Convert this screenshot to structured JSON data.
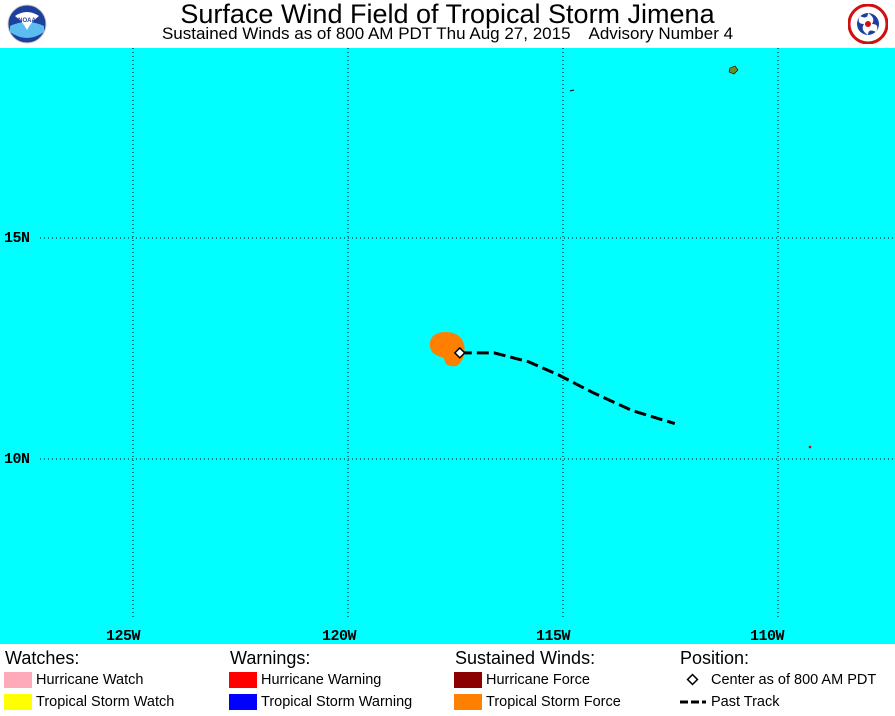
{
  "header": {
    "title": "Surface Wind Field of Tropical Storm Jimena",
    "subtitle": "Sustained Winds as of 800 AM PDT Thu Aug 27, 2015    Advisory Number 4",
    "left_logo_text": "NOAA",
    "right_logo_text": "NATIONAL WEATHER SERVICE"
  },
  "map": {
    "ocean_color": "#00ffff",
    "lat_labels": [
      "15N",
      "10N"
    ],
    "lon_labels": [
      "125W",
      "120W",
      "115W",
      "110W"
    ],
    "storm": {
      "name": "Jimena",
      "center": {
        "lat": 12.4,
        "lon": -117.4
      },
      "past_track": [
        {
          "lat": 12.4,
          "lon": -117.4
        },
        {
          "lat": 12.4,
          "lon": -116.6
        },
        {
          "lat": 12.2,
          "lon": -115.8
        },
        {
          "lat": 11.9,
          "lon": -115.1
        },
        {
          "lat": 11.5,
          "lon": -114.3
        },
        {
          "lat": 11.1,
          "lon": -113.4
        },
        {
          "lat": 10.8,
          "lon": -112.4
        }
      ],
      "tropical_storm_force_color": "#ff8000"
    }
  },
  "legend": {
    "watches_heading": "Watches:",
    "warnings_heading": "Warnings:",
    "winds_heading": "Sustained Winds:",
    "position_heading": "Position:",
    "items": {
      "hurricane_watch": {
        "label": "Hurricane Watch",
        "color": "#ffaabb"
      },
      "tropical_storm_watch": {
        "label": "Tropical Storm Watch",
        "color": "#ffff00"
      },
      "hurricane_warning": {
        "label": "Hurricane Warning",
        "color": "#ff0000"
      },
      "tropical_storm_warning": {
        "label": "Tropical Storm Warning",
        "color": "#0000ff"
      },
      "hurricane_force": {
        "label": "Hurricane Force",
        "color": "#8b0000"
      },
      "tropical_storm_force": {
        "label": "Tropical Storm Force",
        "color": "#ff8000"
      },
      "center": {
        "label": "Center as of 800 AM PDT"
      },
      "past_track": {
        "label": "Past Track"
      }
    }
  }
}
